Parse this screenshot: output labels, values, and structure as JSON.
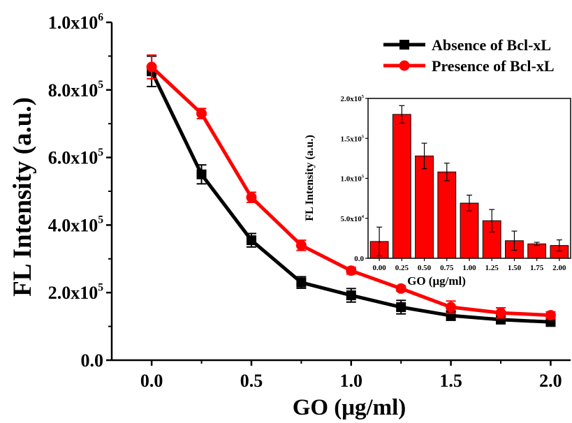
{
  "chart_data": [
    {
      "type": "line",
      "title": "",
      "xlabel": "GO  (μg/ml)",
      "ylabel": "FL Intensity (a.u.)",
      "xlim": [
        -0.2,
        2.1
      ],
      "ylim": [
        0,
        1000000
      ],
      "grid": false,
      "legend_position": "top-right",
      "x_ticks": [
        0.0,
        0.5,
        1.0,
        1.5,
        2.0
      ],
      "x_tick_labels": [
        "0.0",
        "0.5",
        "1.0",
        "1.5",
        "2.0"
      ],
      "y_ticks": [
        0,
        200000,
        400000,
        600000,
        800000,
        1000000
      ],
      "y_tick_labels": [
        {
          "base": "0.0",
          "exp": ""
        },
        {
          "base": "2.0x10",
          "exp": "5"
        },
        {
          "base": "4.0x10",
          "exp": "5"
        },
        {
          "base": "6.0x10",
          "exp": "5"
        },
        {
          "base": "8.0x10",
          "exp": "5"
        },
        {
          "base": "1.0x10",
          "exp": "6"
        }
      ],
      "x": [
        0,
        0.25,
        0.5,
        0.75,
        1.0,
        1.25,
        1.5,
        1.75,
        2.0
      ],
      "series": [
        {
          "name": "Absence of Bcl-xL",
          "color": "#000000",
          "marker": "square",
          "values": [
            855000,
            550000,
            355000,
            230000,
            192000,
            157000,
            132000,
            120000,
            113000
          ],
          "errors": [
            45000,
            28000,
            20000,
            17000,
            20000,
            20000,
            14000,
            10000,
            10000
          ]
        },
        {
          "name": "Presence of Bcl-xL",
          "color": "#ff0000",
          "marker": "circle",
          "values": [
            868000,
            730000,
            482000,
            340000,
            265000,
            212000,
            157000,
            140000,
            133000
          ],
          "errors": [
            35000,
            15000,
            15000,
            15000,
            10000,
            8000,
            18000,
            15000,
            10000
          ]
        }
      ]
    },
    {
      "type": "bar",
      "title": "",
      "xlabel": "GO  (μg/ml)",
      "ylabel": "FL Intensity (a.u.)",
      "ylim": [
        0,
        200000
      ],
      "grid": false,
      "color": "#ff0000",
      "categories": [
        "0.00",
        "0.25",
        "0.50",
        "0.75",
        "1.00",
        "1.25",
        "1.50",
        "1.75",
        "2.00"
      ],
      "values": [
        21000,
        180000,
        128000,
        108000,
        69000,
        47000,
        22000,
        18000,
        16000
      ],
      "errors": [
        18000,
        11000,
        16000,
        11000,
        10000,
        14000,
        12000,
        2000,
        7000
      ],
      "y_ticks": [
        0,
        50000,
        100000,
        150000,
        200000
      ],
      "y_tick_labels": [
        {
          "base": "0.0",
          "exp": ""
        },
        {
          "base": "5.0x10",
          "exp": "4"
        },
        {
          "base": "1.0x10",
          "exp": "5"
        },
        {
          "base": "1.5x10",
          "exp": "5"
        },
        {
          "base": "2.0x10",
          "exp": "5"
        }
      ]
    }
  ]
}
